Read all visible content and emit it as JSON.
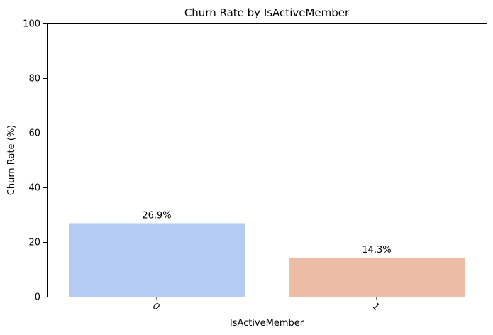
{
  "chart_data": {
    "type": "bar",
    "title": "Churn Rate by IsActiveMember",
    "xlabel": "IsActiveMember",
    "ylabel": "Churn Rate (%)",
    "categories": [
      "0",
      "1"
    ],
    "values": [
      26.9,
      14.3
    ],
    "data_labels": [
      "26.9%",
      "14.3%"
    ],
    "colors": [
      "#b6cbf3",
      "#ecbca5"
    ],
    "ylim": [
      0,
      100
    ],
    "yticks": [
      0,
      20,
      40,
      60,
      80,
      100
    ],
    "xtick_rotation": 45,
    "grid": false,
    "legend": "none"
  }
}
